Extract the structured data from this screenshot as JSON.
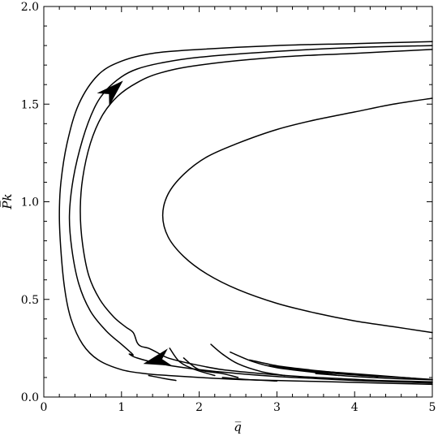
{
  "chart_data": {
    "type": "line",
    "title": "",
    "xlabel": "q̅",
    "ylabel": "P̅k",
    "xlim": [
      0,
      5
    ],
    "ylim": [
      0,
      2
    ],
    "xticks": [
      0,
      1,
      2,
      3,
      4,
      5
    ],
    "xtick_labels": [
      "0",
      "1",
      "2",
      "3",
      "4",
      "5"
    ],
    "yticks": [
      0,
      0.5,
      1.0,
      1.5,
      2.0
    ],
    "ytick_labels": [
      "0.0",
      "0.5",
      "1.0",
      "1.5",
      "2.0"
    ],
    "grid": false,
    "legend": "none",
    "series": [
      {
        "points": [
          [
            5.0,
            0.33
          ],
          [
            4.5,
            0.36
          ],
          [
            4.0,
            0.39
          ],
          [
            3.5,
            0.43
          ],
          [
            3.0,
            0.48
          ],
          [
            2.5,
            0.55
          ],
          [
            2.1,
            0.63
          ],
          [
            1.8,
            0.72
          ],
          [
            1.6,
            0.82
          ],
          [
            1.53,
            0.93
          ],
          [
            1.6,
            1.04
          ],
          [
            1.8,
            1.14
          ],
          [
            2.1,
            1.23
          ],
          [
            2.5,
            1.3
          ],
          [
            3.0,
            1.37
          ],
          [
            3.5,
            1.42
          ],
          [
            4.0,
            1.46
          ],
          [
            4.5,
            1.5
          ],
          [
            5.0,
            1.53
          ]
        ]
      },
      {
        "points": [
          [
            5.0,
            1.82
          ],
          [
            4.0,
            1.81
          ],
          [
            3.0,
            1.8
          ],
          [
            2.0,
            1.78
          ],
          [
            1.4,
            1.76
          ],
          [
            1.0,
            1.72
          ],
          [
            0.7,
            1.65
          ],
          [
            0.45,
            1.5
          ],
          [
            0.3,
            1.3
          ],
          [
            0.22,
            1.1
          ],
          [
            0.2,
            0.93
          ],
          [
            0.22,
            0.75
          ],
          [
            0.27,
            0.55
          ],
          [
            0.35,
            0.4
          ],
          [
            0.5,
            0.27
          ],
          [
            0.7,
            0.19
          ],
          [
            1.0,
            0.14
          ],
          [
            1.3,
            0.12
          ],
          [
            1.6,
            0.11
          ],
          [
            2.0,
            0.1
          ],
          [
            2.5,
            0.09
          ],
          [
            3.0,
            0.085
          ],
          [
            3.5,
            0.08
          ],
          [
            4.0,
            0.075
          ],
          [
            4.5,
            0.07
          ],
          [
            5.0,
            0.065
          ]
        ]
      },
      {
        "points": [
          [
            5.0,
            1.8
          ],
          [
            4.0,
            1.79
          ],
          [
            3.0,
            1.77
          ],
          [
            2.0,
            1.74
          ],
          [
            1.5,
            1.71
          ],
          [
            1.2,
            1.68
          ],
          [
            1.0,
            1.64
          ],
          [
            0.8,
            1.57
          ],
          [
            0.65,
            1.48
          ],
          [
            0.5,
            1.32
          ],
          [
            0.38,
            1.12
          ],
          [
            0.33,
            0.93
          ],
          [
            0.36,
            0.76
          ],
          [
            0.45,
            0.58
          ],
          [
            0.6,
            0.44
          ],
          [
            0.8,
            0.34
          ],
          [
            1.0,
            0.27
          ],
          [
            1.1,
            0.235
          ],
          [
            1.15,
            0.215
          ],
          [
            1.1,
            0.22
          ],
          [
            1.2,
            0.2
          ],
          [
            1.5,
            0.17
          ],
          [
            2.0,
            0.14
          ],
          [
            2.5,
            0.12
          ],
          [
            3.0,
            0.105
          ],
          [
            3.5,
            0.095
          ],
          [
            4.0,
            0.085
          ],
          [
            4.5,
            0.078
          ],
          [
            5.0,
            0.072
          ]
        ]
      },
      {
        "points": [
          [
            5.0,
            1.78
          ],
          [
            4.0,
            1.76
          ],
          [
            3.0,
            1.74
          ],
          [
            2.0,
            1.7
          ],
          [
            1.5,
            1.66
          ],
          [
            1.2,
            1.61
          ],
          [
            0.95,
            1.54
          ],
          [
            0.75,
            1.44
          ],
          [
            0.6,
            1.3
          ],
          [
            0.5,
            1.12
          ],
          [
            0.47,
            0.95
          ],
          [
            0.5,
            0.78
          ],
          [
            0.58,
            0.62
          ],
          [
            0.72,
            0.5
          ],
          [
            0.9,
            0.41
          ],
          [
            1.05,
            0.36
          ],
          [
            1.15,
            0.33
          ],
          [
            1.2,
            0.28
          ],
          [
            1.25,
            0.26
          ],
          [
            1.35,
            0.25
          ],
          [
            1.45,
            0.23
          ],
          [
            1.6,
            0.2
          ],
          [
            1.9,
            0.17
          ],
          [
            2.3,
            0.14
          ],
          [
            2.8,
            0.12
          ],
          [
            3.3,
            0.105
          ],
          [
            3.8,
            0.095
          ],
          [
            4.3,
            0.085
          ],
          [
            5.0,
            0.078
          ]
        ]
      }
    ],
    "segments": [
      [
        [
          1.62,
          0.25
        ],
        [
          1.75,
          0.18
        ],
        [
          1.95,
          0.14
        ],
        [
          2.2,
          0.11
        ]
      ],
      [
        [
          1.8,
          0.2
        ],
        [
          2.0,
          0.14
        ],
        [
          2.3,
          0.12
        ],
        [
          2.5,
          0.1
        ]
      ],
      [
        [
          2.15,
          0.27
        ],
        [
          2.3,
          0.22
        ],
        [
          2.5,
          0.17
        ],
        [
          2.8,
          0.13
        ],
        [
          3.1,
          0.11
        ]
      ],
      [
        [
          2.4,
          0.23
        ],
        [
          2.7,
          0.18
        ],
        [
          3.0,
          0.15
        ],
        [
          3.4,
          0.13
        ],
        [
          3.8,
          0.11
        ]
      ],
      [
        [
          2.65,
          0.19
        ],
        [
          3.0,
          0.16
        ],
        [
          3.4,
          0.14
        ],
        [
          3.9,
          0.12
        ],
        [
          4.3,
          0.105
        ]
      ],
      [
        [
          2.9,
          0.16
        ],
        [
          3.3,
          0.14
        ],
        [
          3.8,
          0.125
        ],
        [
          4.3,
          0.11
        ],
        [
          4.8,
          0.095
        ]
      ],
      [
        [
          3.2,
          0.14
        ],
        [
          3.6,
          0.125
        ],
        [
          4.1,
          0.11
        ],
        [
          4.6,
          0.1
        ],
        [
          5.0,
          0.09
        ]
      ],
      [
        [
          3.5,
          0.12
        ],
        [
          4.0,
          0.105
        ],
        [
          4.5,
          0.095
        ],
        [
          5.0,
          0.088
        ]
      ],
      [
        [
          2.3,
          0.1
        ],
        [
          2.6,
          0.09
        ],
        [
          3.0,
          0.082
        ]
      ],
      [
        [
          1.35,
          0.11
        ],
        [
          1.55,
          0.095
        ],
        [
          1.7,
          0.085
        ]
      ]
    ],
    "arrows": [
      {
        "at": [
          1.02,
          1.62
        ],
        "toward": [
          0.65,
          1.48
        ],
        "direction": "up-right"
      },
      {
        "at": [
          1.28,
          0.17
        ],
        "toward": [
          1.58,
          0.2
        ],
        "direction": "up-left"
      }
    ]
  }
}
